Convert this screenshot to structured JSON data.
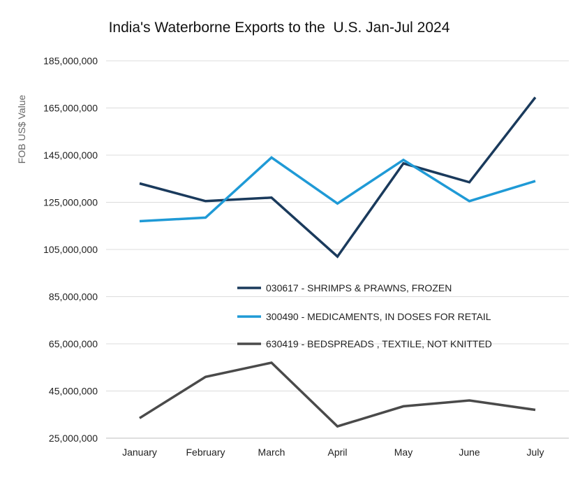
{
  "chart_data": {
    "type": "line",
    "title": "India's Waterborne Exports to the  U.S. Jan-Jul 2024",
    "xlabel": "",
    "ylabel": "FOB US$ Value",
    "categories": [
      "January",
      "February",
      "March",
      "April",
      "May",
      "June",
      "July"
    ],
    "ylim": [
      25000000,
      185000000
    ],
    "yticks": [
      "25,000,000",
      "45,000,000",
      "65,000,000",
      "85,000,000",
      "105,000,000",
      "125,000,000",
      "145,000,000",
      "165,000,000",
      "185,000,000"
    ],
    "grid": true,
    "legend_position": "center",
    "series": [
      {
        "name": "030617 - SHRIMPS & PRAWNS, FROZEN",
        "color": "#1a3a5c",
        "values": [
          133000000,
          125500000,
          127000000,
          102000000,
          141500000,
          133500000,
          169500000
        ]
      },
      {
        "name": "300490 - MEDICAMENTS, IN DOSES FOR RETAIL",
        "color": "#1f9ad6",
        "values": [
          117000000,
          118500000,
          144000000,
          124500000,
          143000000,
          125500000,
          134000000
        ]
      },
      {
        "name": "630419 - BEDSPREADS , TEXTILE, NOT KNITTED",
        "color": "#4a4a4a",
        "values": [
          33500000,
          51000000,
          57000000,
          30000000,
          38500000,
          41000000,
          37000000
        ]
      }
    ]
  }
}
